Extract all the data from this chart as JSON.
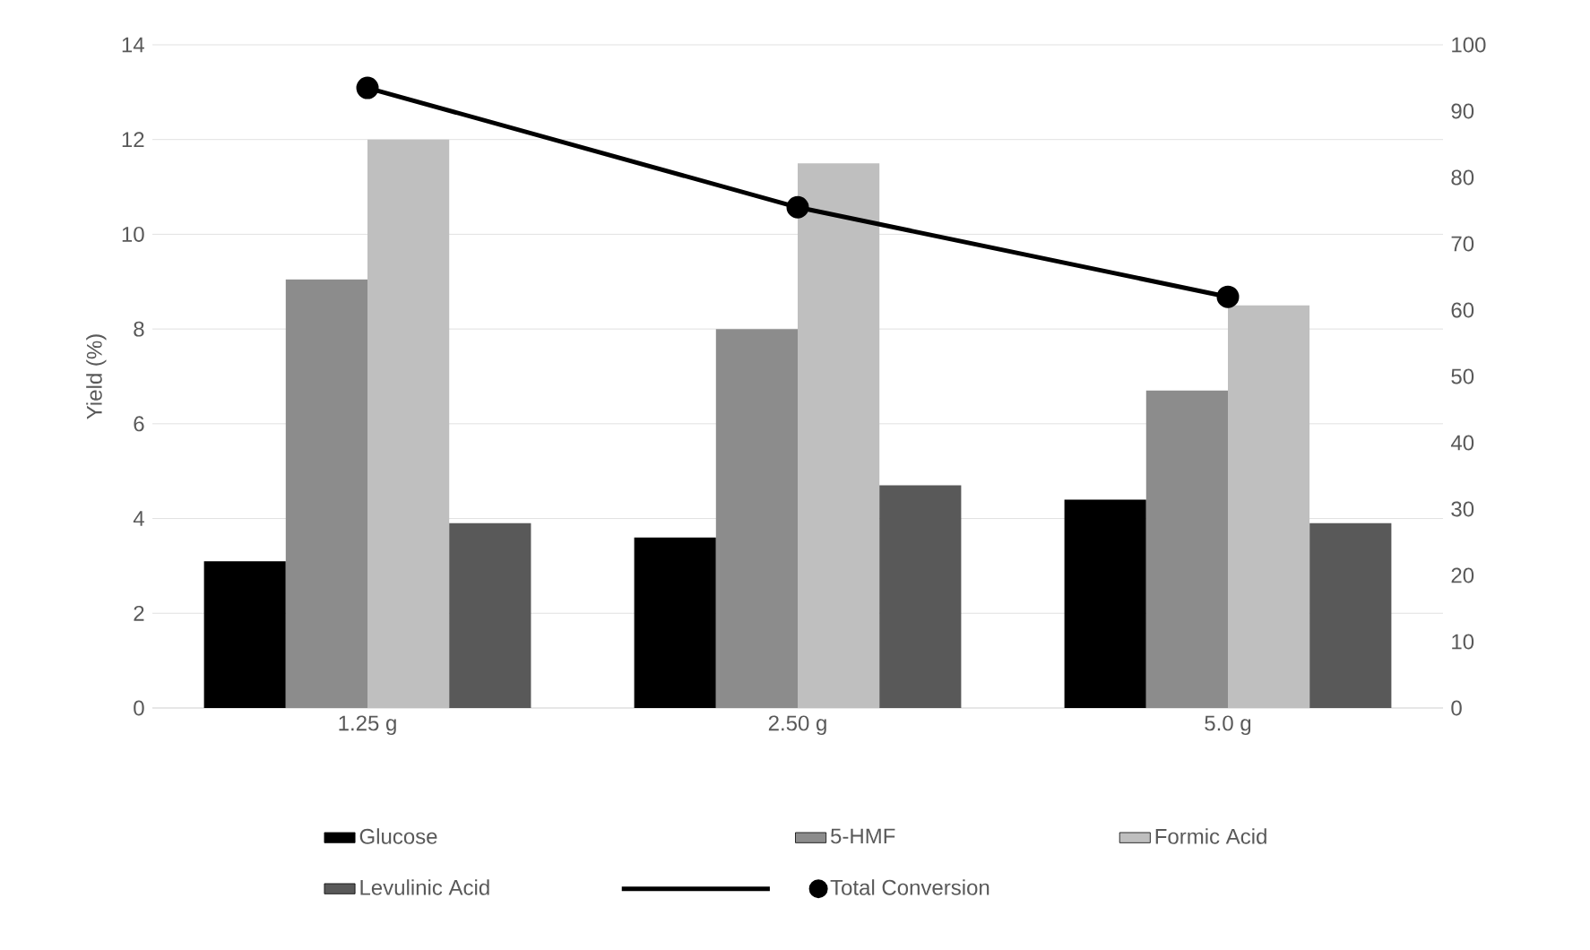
{
  "chart_data": {
    "type": "bar",
    "ylabel": "Yield (%)",
    "categories": [
      "1.25 g",
      "2.50 g",
      "5.0 g"
    ],
    "series": [
      {
        "name": "Glucose",
        "color": "#000000",
        "values": [
          3.1,
          3.6,
          4.4
        ]
      },
      {
        "name": "5-HMF",
        "color": "#8c8c8c",
        "values": [
          9.05,
          8.0,
          6.7
        ]
      },
      {
        "name": "Formic Acid",
        "color": "#bfbfbf",
        "values": [
          12.0,
          11.5,
          8.5
        ]
      },
      {
        "name": "Levulinic Acid",
        "color": "#595959",
        "values": [
          3.9,
          4.7,
          3.9
        ]
      },
      {
        "name": "Total Conversion",
        "type": "line",
        "axis": "y2",
        "color": "#000000",
        "marker": "circle",
        "values": [
          93.5,
          75.5,
          62
        ]
      }
    ],
    "ylim": [
      0,
      14
    ],
    "yticks": [
      0,
      2,
      4,
      6,
      8,
      10,
      12,
      14
    ],
    "y2lim": [
      0,
      100
    ],
    "y2ticks": [
      0,
      10,
      20,
      30,
      40,
      50,
      60,
      70,
      80,
      90,
      100
    ],
    "grid": "y",
    "legend": "bottom"
  }
}
